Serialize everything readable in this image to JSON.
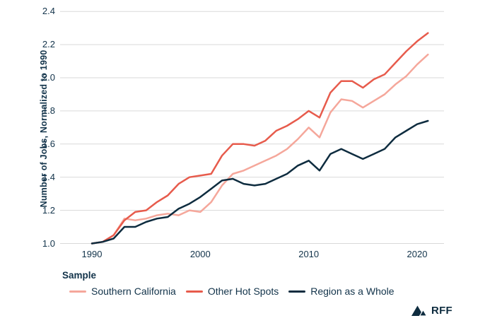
{
  "chart_data": {
    "type": "line",
    "title": "",
    "xlabel": "",
    "ylabel": "Number of Jobs, Normalized to 1990",
    "legend_title": "Sample",
    "legend_position": "bottom",
    "grid": "horizontal-only",
    "ylim": [
      1.0,
      2.4
    ],
    "x_ticks": [
      1990,
      2000,
      2010,
      2020
    ],
    "y_ticks": [
      1.0,
      1.2,
      1.4,
      1.6,
      1.8,
      2.0,
      2.2,
      2.4
    ],
    "x": [
      1990,
      1991,
      1992,
      1993,
      1994,
      1995,
      1996,
      1997,
      1998,
      1999,
      2000,
      2001,
      2002,
      2003,
      2004,
      2005,
      2006,
      2007,
      2008,
      2009,
      2010,
      2011,
      2012,
      2013,
      2014,
      2015,
      2016,
      2017,
      2018,
      2019,
      2020,
      2021
    ],
    "series": [
      {
        "name": "Southern California",
        "color": "#F5A79B",
        "values": [
          1.0,
          1.01,
          1.05,
          1.15,
          1.14,
          1.15,
          1.17,
          1.18,
          1.17,
          1.2,
          1.19,
          1.25,
          1.35,
          1.42,
          1.44,
          1.47,
          1.5,
          1.53,
          1.57,
          1.63,
          1.7,
          1.64,
          1.79,
          1.87,
          1.86,
          1.82,
          1.86,
          1.9,
          1.96,
          2.01,
          2.08,
          2.14
        ]
      },
      {
        "name": "Other Hot Spots",
        "color": "#E75B4C",
        "values": [
          1.0,
          1.01,
          1.05,
          1.14,
          1.19,
          1.2,
          1.25,
          1.29,
          1.36,
          1.4,
          1.41,
          1.42,
          1.53,
          1.6,
          1.6,
          1.59,
          1.62,
          1.68,
          1.71,
          1.75,
          1.8,
          1.76,
          1.91,
          1.98,
          1.98,
          1.94,
          1.99,
          2.02,
          2.09,
          2.16,
          2.22,
          2.27
        ]
      },
      {
        "name": "Region as a Whole",
        "color": "#0E2C3F",
        "values": [
          1.0,
          1.01,
          1.03,
          1.1,
          1.1,
          1.13,
          1.15,
          1.16,
          1.21,
          1.24,
          1.28,
          1.33,
          1.38,
          1.39,
          1.36,
          1.35,
          1.36,
          1.39,
          1.42,
          1.47,
          1.5,
          1.44,
          1.54,
          1.57,
          1.54,
          1.51,
          1.54,
          1.57,
          1.64,
          1.68,
          1.72,
          1.74
        ]
      }
    ]
  },
  "branding": {
    "logo_text": "RFF"
  },
  "colors": {
    "southern_california": "#F5A79B",
    "other_hot_spots": "#E75B4C",
    "region_as_a_whole": "#0E2C3F",
    "gridline": "#D9D9D9",
    "text": "#12334A",
    "background": "#FFFFFF"
  }
}
